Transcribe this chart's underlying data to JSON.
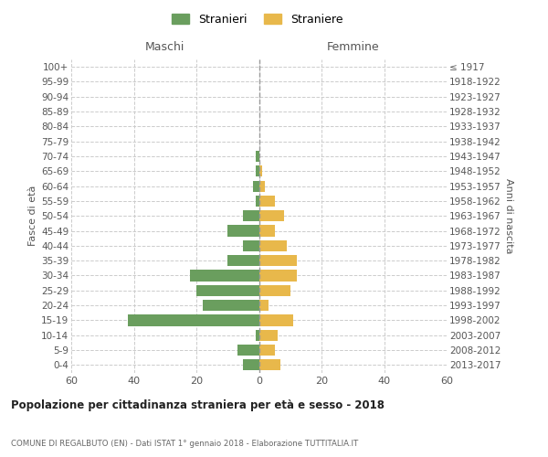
{
  "age_groups": [
    "0-4",
    "5-9",
    "10-14",
    "15-19",
    "20-24",
    "25-29",
    "30-34",
    "35-39",
    "40-44",
    "45-49",
    "50-54",
    "55-59",
    "60-64",
    "65-69",
    "70-74",
    "75-79",
    "80-84",
    "85-89",
    "90-94",
    "95-99",
    "100+"
  ],
  "birth_years": [
    "2013-2017",
    "2008-2012",
    "2003-2007",
    "1998-2002",
    "1993-1997",
    "1988-1992",
    "1983-1987",
    "1978-1982",
    "1973-1977",
    "1968-1972",
    "1963-1967",
    "1958-1962",
    "1953-1957",
    "1948-1952",
    "1943-1947",
    "1938-1942",
    "1933-1937",
    "1928-1932",
    "1923-1927",
    "1918-1922",
    "≤ 1917"
  ],
  "maschi": [
    5,
    7,
    1,
    42,
    18,
    20,
    22,
    10,
    5,
    10,
    5,
    1,
    2,
    1,
    1,
    0,
    0,
    0,
    0,
    0,
    0
  ],
  "femmine": [
    7,
    5,
    6,
    11,
    3,
    10,
    12,
    12,
    9,
    5,
    8,
    5,
    2,
    1,
    0,
    0,
    0,
    0,
    0,
    0,
    0
  ],
  "maschi_color": "#6a9e5e",
  "femmine_color": "#e8b84b",
  "title": "Popolazione per cittadinanza straniera per età e sesso - 2018",
  "subtitle": "COMUNE DI REGALBUTO (EN) - Dati ISTAT 1° gennaio 2018 - Elaborazione TUTTITALIA.IT",
  "xlabel_left": "Maschi",
  "xlabel_right": "Femmine",
  "ylabel_left": "Fasce di età",
  "ylabel_right": "Anni di nascita",
  "legend_maschi": "Stranieri",
  "legend_femmine": "Straniere",
  "xlim": 60,
  "background_color": "#ffffff",
  "grid_color": "#cccccc",
  "bar_height": 0.75
}
